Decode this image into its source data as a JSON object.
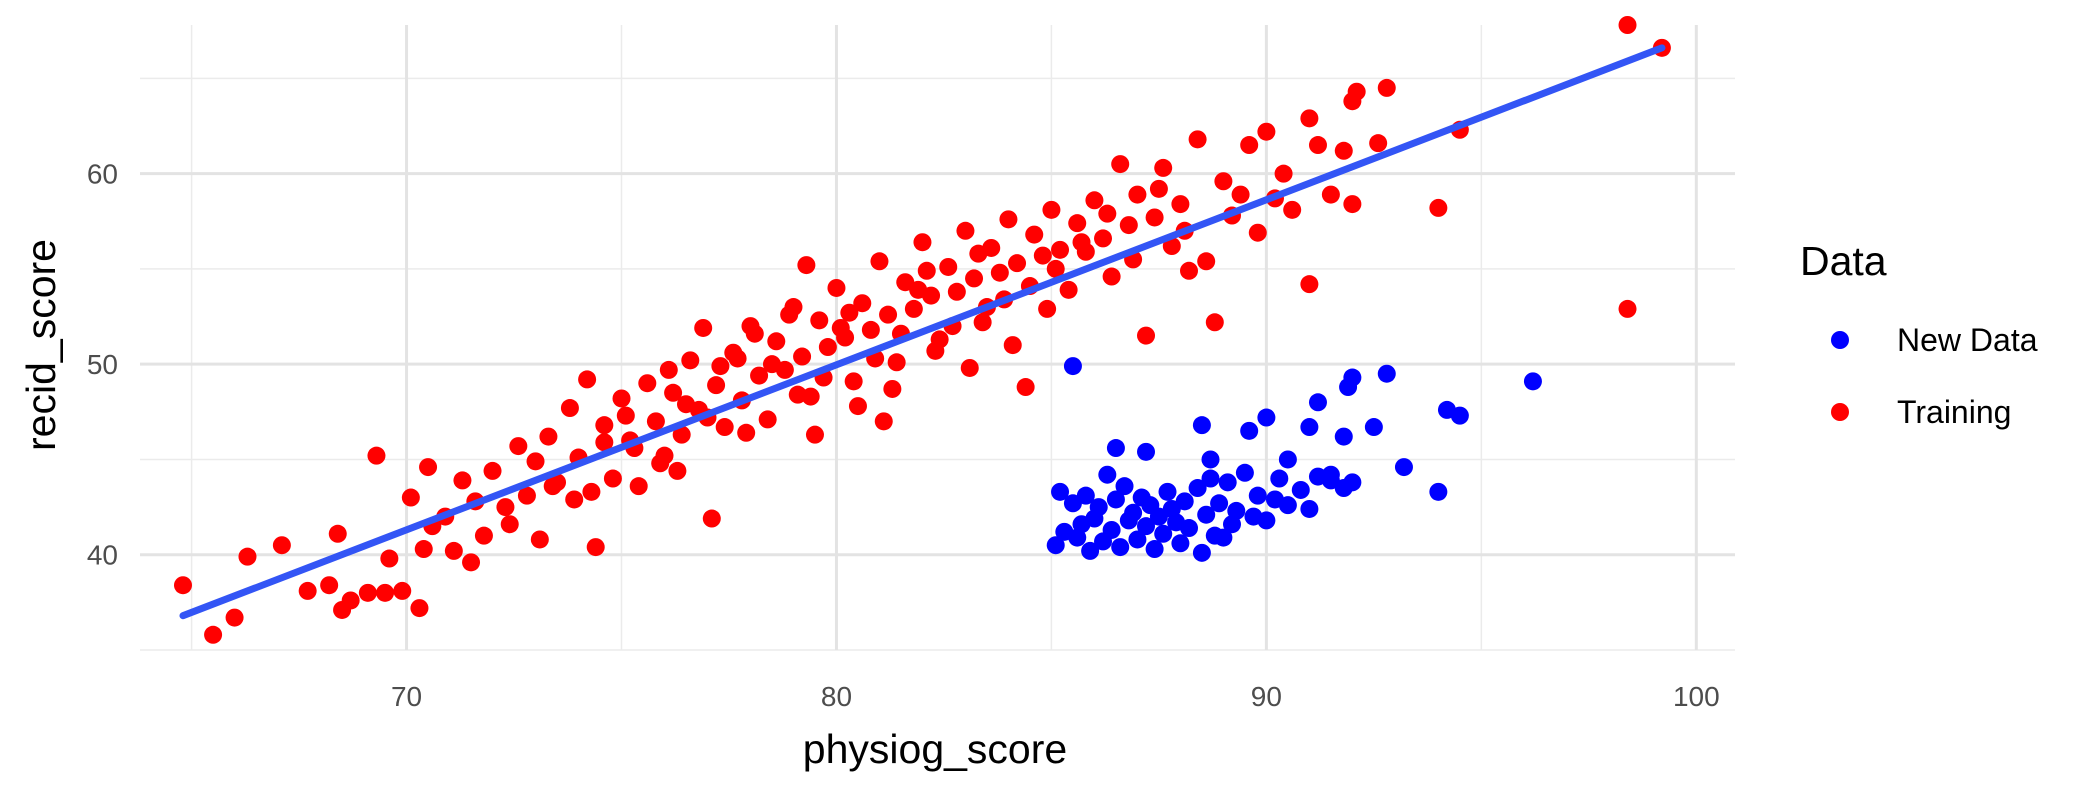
{
  "chart_data": {
    "type": "scatter",
    "xlabel": "physiog_score",
    "ylabel": "recid_score",
    "xlim": [
      63.8,
      100.9
    ],
    "ylim": [
      35.0,
      67.8
    ],
    "x_ticks": [
      70,
      80,
      90,
      100
    ],
    "y_ticks": [
      40,
      50,
      60
    ],
    "grid": true,
    "legend": {
      "title": "Data",
      "position": "right"
    },
    "colors": {
      "New Data": "#0000FF",
      "Training": "#FF0000",
      "fit_line": "#3355F5"
    },
    "fit_line": {
      "x": [
        64.8,
        99.2
      ],
      "y": [
        36.8,
        66.6
      ]
    },
    "series": [
      {
        "name": "New Data",
        "points": [
          [
            85.5,
            49.9
          ],
          [
            85.1,
            40.5
          ],
          [
            85.3,
            41.2
          ],
          [
            85.2,
            43.3
          ],
          [
            85.5,
            42.7
          ],
          [
            85.6,
            40.9
          ],
          [
            85.7,
            41.6
          ],
          [
            85.8,
            43.1
          ],
          [
            85.9,
            40.2
          ],
          [
            86.0,
            41.9
          ],
          [
            86.1,
            42.5
          ],
          [
            86.2,
            40.7
          ],
          [
            86.3,
            44.2
          ],
          [
            86.4,
            41.3
          ],
          [
            86.5,
            42.9
          ],
          [
            86.6,
            40.4
          ],
          [
            86.7,
            43.6
          ],
          [
            86.8,
            41.8
          ],
          [
            86.9,
            42.2
          ],
          [
            87.0,
            40.8
          ],
          [
            87.1,
            43.0
          ],
          [
            87.2,
            41.5
          ],
          [
            87.3,
            42.6
          ],
          [
            87.4,
            40.3
          ],
          [
            87.5,
            42.0
          ],
          [
            87.6,
            41.1
          ],
          [
            87.7,
            43.3
          ],
          [
            87.8,
            42.4
          ],
          [
            87.9,
            41.7
          ],
          [
            88.0,
            40.6
          ],
          [
            88.1,
            42.8
          ],
          [
            88.2,
            41.4
          ],
          [
            88.4,
            43.5
          ],
          [
            88.5,
            40.1
          ],
          [
            88.6,
            42.1
          ],
          [
            88.7,
            44.0
          ],
          [
            88.8,
            41.0
          ],
          [
            88.9,
            42.7
          ],
          [
            89.0,
            40.9
          ],
          [
            89.1,
            43.8
          ],
          [
            89.2,
            41.6
          ],
          [
            89.3,
            42.3
          ],
          [
            89.5,
            44.3
          ],
          [
            89.7,
            42.0
          ],
          [
            89.8,
            43.1
          ],
          [
            90.0,
            41.8
          ],
          [
            90.2,
            42.9
          ],
          [
            90.3,
            44.0
          ],
          [
            90.5,
            42.6
          ],
          [
            90.8,
            43.4
          ],
          [
            91.0,
            42.4
          ],
          [
            91.2,
            44.1
          ],
          [
            91.5,
            43.9
          ],
          [
            91.8,
            43.5
          ],
          [
            86.5,
            45.6
          ],
          [
            87.2,
            45.4
          ],
          [
            88.5,
            46.8
          ],
          [
            88.7,
            45.0
          ],
          [
            89.6,
            46.5
          ],
          [
            90.0,
            47.2
          ],
          [
            90.5,
            45.0
          ],
          [
            91.0,
            46.7
          ],
          [
            91.2,
            48.0
          ],
          [
            91.5,
            44.2
          ],
          [
            91.8,
            46.2
          ],
          [
            91.9,
            48.8
          ],
          [
            92.0,
            49.3
          ],
          [
            92.0,
            43.8
          ],
          [
            92.5,
            46.7
          ],
          [
            92.8,
            49.5
          ],
          [
            93.2,
            44.6
          ],
          [
            94.0,
            43.3
          ],
          [
            94.2,
            47.6
          ],
          [
            94.5,
            47.3
          ],
          [
            96.2,
            49.1
          ]
        ]
      },
      {
        "name": "Training",
        "points": [
          [
            64.8,
            38.4
          ],
          [
            65.5,
            35.8
          ],
          [
            66.0,
            36.7
          ],
          [
            66.3,
            39.9
          ],
          [
            67.1,
            40.5
          ],
          [
            67.7,
            38.1
          ],
          [
            68.2,
            38.4
          ],
          [
            68.4,
            41.1
          ],
          [
            68.5,
            37.1
          ],
          [
            68.7,
            37.6
          ],
          [
            69.1,
            38.0
          ],
          [
            69.3,
            45.2
          ],
          [
            69.5,
            38.0
          ],
          [
            69.6,
            39.8
          ],
          [
            69.9,
            38.1
          ],
          [
            70.1,
            43.0
          ],
          [
            70.3,
            37.2
          ],
          [
            70.4,
            40.3
          ],
          [
            70.5,
            44.6
          ],
          [
            70.6,
            41.5
          ],
          [
            70.9,
            42.0
          ],
          [
            71.1,
            40.2
          ],
          [
            71.3,
            43.9
          ],
          [
            71.5,
            39.6
          ],
          [
            71.8,
            41.0
          ],
          [
            72.0,
            44.4
          ],
          [
            72.3,
            42.5
          ],
          [
            72.6,
            45.7
          ],
          [
            72.8,
            43.1
          ],
          [
            73.1,
            40.8
          ],
          [
            73.3,
            46.2
          ],
          [
            73.5,
            43.8
          ],
          [
            73.8,
            47.7
          ],
          [
            74.0,
            45.1
          ],
          [
            74.2,
            49.2
          ],
          [
            74.4,
            40.4
          ],
          [
            74.6,
            46.8
          ],
          [
            74.8,
            44.0
          ],
          [
            75.0,
            48.2
          ],
          [
            75.2,
            46.0
          ],
          [
            75.4,
            43.6
          ],
          [
            75.6,
            49.0
          ],
          [
            75.8,
            47.0
          ],
          [
            76.0,
            45.2
          ],
          [
            76.2,
            48.5
          ],
          [
            76.4,
            46.3
          ],
          [
            76.6,
            50.2
          ],
          [
            76.8,
            47.6
          ],
          [
            76.9,
            51.9
          ],
          [
            77.1,
            41.9
          ],
          [
            77.2,
            48.9
          ],
          [
            77.4,
            46.7
          ],
          [
            77.6,
            50.6
          ],
          [
            77.8,
            48.1
          ],
          [
            78.0,
            52.0
          ],
          [
            78.2,
            49.4
          ],
          [
            78.4,
            47.1
          ],
          [
            78.6,
            51.2
          ],
          [
            78.8,
            49.7
          ],
          [
            79.0,
            53.0
          ],
          [
            79.2,
            50.4
          ],
          [
            79.3,
            55.2
          ],
          [
            79.4,
            48.3
          ],
          [
            79.6,
            52.3
          ],
          [
            79.8,
            50.9
          ],
          [
            80.0,
            54.0
          ],
          [
            80.2,
            51.4
          ],
          [
            80.4,
            49.1
          ],
          [
            80.6,
            53.2
          ],
          [
            80.8,
            51.8
          ],
          [
            81.0,
            55.4
          ],
          [
            81.2,
            52.6
          ],
          [
            81.4,
            50.1
          ],
          [
            81.6,
            54.3
          ],
          [
            81.8,
            52.9
          ],
          [
            82.0,
            56.4
          ],
          [
            82.2,
            53.6
          ],
          [
            82.4,
            51.3
          ],
          [
            82.6,
            55.1
          ],
          [
            82.8,
            53.8
          ],
          [
            83.0,
            57.0
          ],
          [
            83.2,
            54.5
          ],
          [
            83.4,
            52.2
          ],
          [
            83.6,
            56.1
          ],
          [
            83.8,
            54.8
          ],
          [
            84.0,
            57.6
          ],
          [
            84.2,
            55.3
          ],
          [
            84.4,
            48.8
          ],
          [
            84.6,
            56.8
          ],
          [
            84.8,
            55.7
          ],
          [
            85.0,
            58.1
          ],
          [
            85.2,
            56.0
          ],
          [
            85.4,
            53.9
          ],
          [
            85.6,
            57.4
          ],
          [
            85.8,
            55.9
          ],
          [
            86.0,
            58.6
          ],
          [
            86.2,
            56.6
          ],
          [
            86.4,
            54.6
          ],
          [
            86.6,
            60.5
          ],
          [
            86.8,
            57.3
          ],
          [
            87.0,
            58.9
          ],
          [
            87.2,
            51.5
          ],
          [
            87.4,
            57.7
          ],
          [
            87.6,
            60.3
          ],
          [
            87.8,
            56.2
          ],
          [
            88.0,
            58.4
          ],
          [
            88.2,
            54.9
          ],
          [
            88.4,
            61.8
          ],
          [
            88.6,
            55.4
          ],
          [
            88.8,
            52.2
          ],
          [
            89.0,
            59.6
          ],
          [
            89.2,
            57.8
          ],
          [
            89.4,
            58.9
          ],
          [
            89.6,
            61.5
          ],
          [
            89.8,
            56.9
          ],
          [
            90.0,
            62.2
          ],
          [
            90.2,
            58.7
          ],
          [
            90.4,
            60.0
          ],
          [
            90.6,
            58.1
          ],
          [
            91.0,
            62.9
          ],
          [
            91.0,
            54.2
          ],
          [
            91.2,
            61.5
          ],
          [
            91.5,
            58.9
          ],
          [
            91.8,
            61.2
          ],
          [
            92.0,
            63.8
          ],
          [
            92.0,
            58.4
          ],
          [
            92.1,
            64.3
          ],
          [
            92.6,
            61.6
          ],
          [
            92.8,
            64.5
          ],
          [
            94.0,
            58.2
          ],
          [
            94.5,
            62.3
          ],
          [
            98.4,
            52.9
          ],
          [
            98.4,
            67.8
          ],
          [
            99.2,
            66.6
          ],
          [
            71.6,
            42.8
          ],
          [
            72.4,
            41.6
          ],
          [
            73.0,
            44.9
          ],
          [
            73.9,
            42.9
          ],
          [
            74.6,
            45.9
          ],
          [
            75.1,
            47.3
          ],
          [
            75.9,
            44.8
          ],
          [
            76.5,
            47.9
          ],
          [
            77.3,
            49.9
          ],
          [
            77.9,
            46.4
          ],
          [
            78.5,
            50.0
          ],
          [
            79.1,
            48.4
          ],
          [
            79.7,
            49.3
          ],
          [
            80.3,
            52.7
          ],
          [
            80.9,
            50.3
          ],
          [
            81.5,
            51.6
          ],
          [
            82.1,
            54.9
          ],
          [
            82.7,
            52.0
          ],
          [
            83.3,
            55.8
          ],
          [
            83.9,
            53.4
          ],
          [
            84.5,
            54.1
          ],
          [
            85.1,
            55.0
          ],
          [
            85.7,
            56.4
          ],
          [
            86.3,
            57.9
          ],
          [
            86.9,
            55.5
          ],
          [
            87.5,
            59.2
          ],
          [
            88.1,
            57.0
          ],
          [
            77.0,
            47.2
          ],
          [
            78.1,
            51.6
          ],
          [
            79.5,
            46.3
          ],
          [
            80.5,
            47.8
          ],
          [
            81.3,
            48.7
          ],
          [
            82.3,
            50.7
          ],
          [
            83.1,
            49.8
          ],
          [
            84.1,
            51.0
          ],
          [
            76.3,
            44.4
          ],
          [
            75.3,
            45.6
          ],
          [
            74.3,
            43.3
          ],
          [
            73.4,
            43.6
          ],
          [
            81.9,
            53.9
          ],
          [
            80.1,
            51.9
          ],
          [
            78.9,
            52.6
          ],
          [
            77.7,
            50.3
          ],
          [
            76.1,
            49.7
          ],
          [
            81.1,
            47.0
          ],
          [
            83.5,
            53.0
          ],
          [
            84.9,
            52.9
          ]
        ]
      }
    ]
  }
}
